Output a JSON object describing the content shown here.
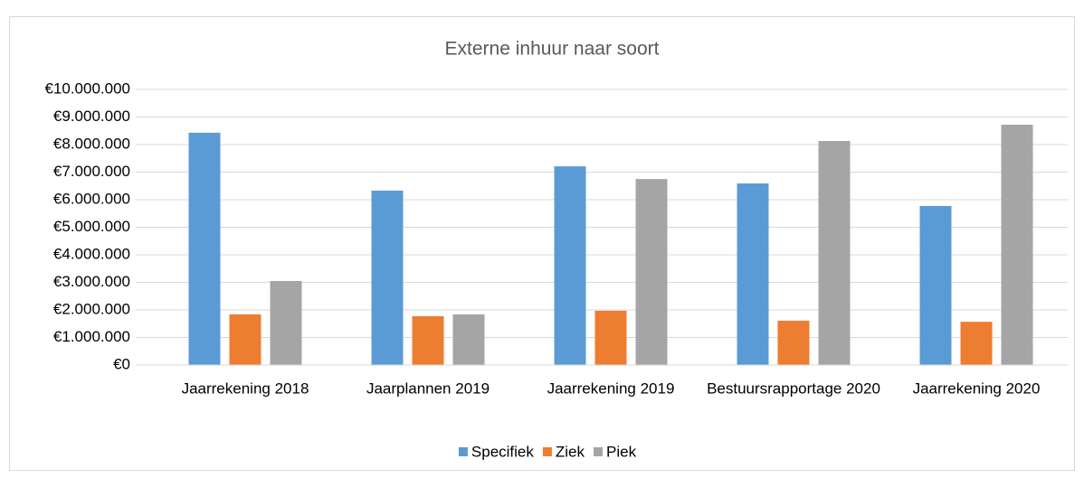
{
  "chart_data": {
    "type": "bar",
    "title": "Externe inhuur naar soort",
    "categories": [
      "Jaarrekening 2018",
      "Jaarplannen 2019",
      "Jaarrekening 2019",
      "Bestuursrapportage 2020",
      "Jaarrekening 2020"
    ],
    "series": [
      {
        "name": "Specifiek",
        "color": "#5b9bd5",
        "values": [
          8430000,
          6330000,
          7210000,
          6590000,
          5770000
        ]
      },
      {
        "name": "Ziek",
        "color": "#ed7d31",
        "values": [
          1840000,
          1770000,
          1970000,
          1610000,
          1570000
        ]
      },
      {
        "name": "Piek",
        "color": "#a5a5a5",
        "values": [
          3050000,
          1840000,
          6750000,
          8130000,
          8720000
        ]
      }
    ],
    "ylim": [
      0,
      10000000
    ],
    "yticks": [
      {
        "value": 0,
        "label": "€0"
      },
      {
        "value": 1000000,
        "label": "€1.000.000"
      },
      {
        "value": 2000000,
        "label": "€2.000.000"
      },
      {
        "value": 3000000,
        "label": "€3.000.000"
      },
      {
        "value": 4000000,
        "label": "€4.000.000"
      },
      {
        "value": 5000000,
        "label": "€5.000.000"
      },
      {
        "value": 6000000,
        "label": "€6.000.000"
      },
      {
        "value": 7000000,
        "label": "€7.000.000"
      },
      {
        "value": 8000000,
        "label": "€8.000.000"
      },
      {
        "value": 9000000,
        "label": "€9.000.000"
      },
      {
        "value": 10000000,
        "label": "€10.000.000"
      }
    ],
    "grid": true,
    "legend": "bottom"
  }
}
